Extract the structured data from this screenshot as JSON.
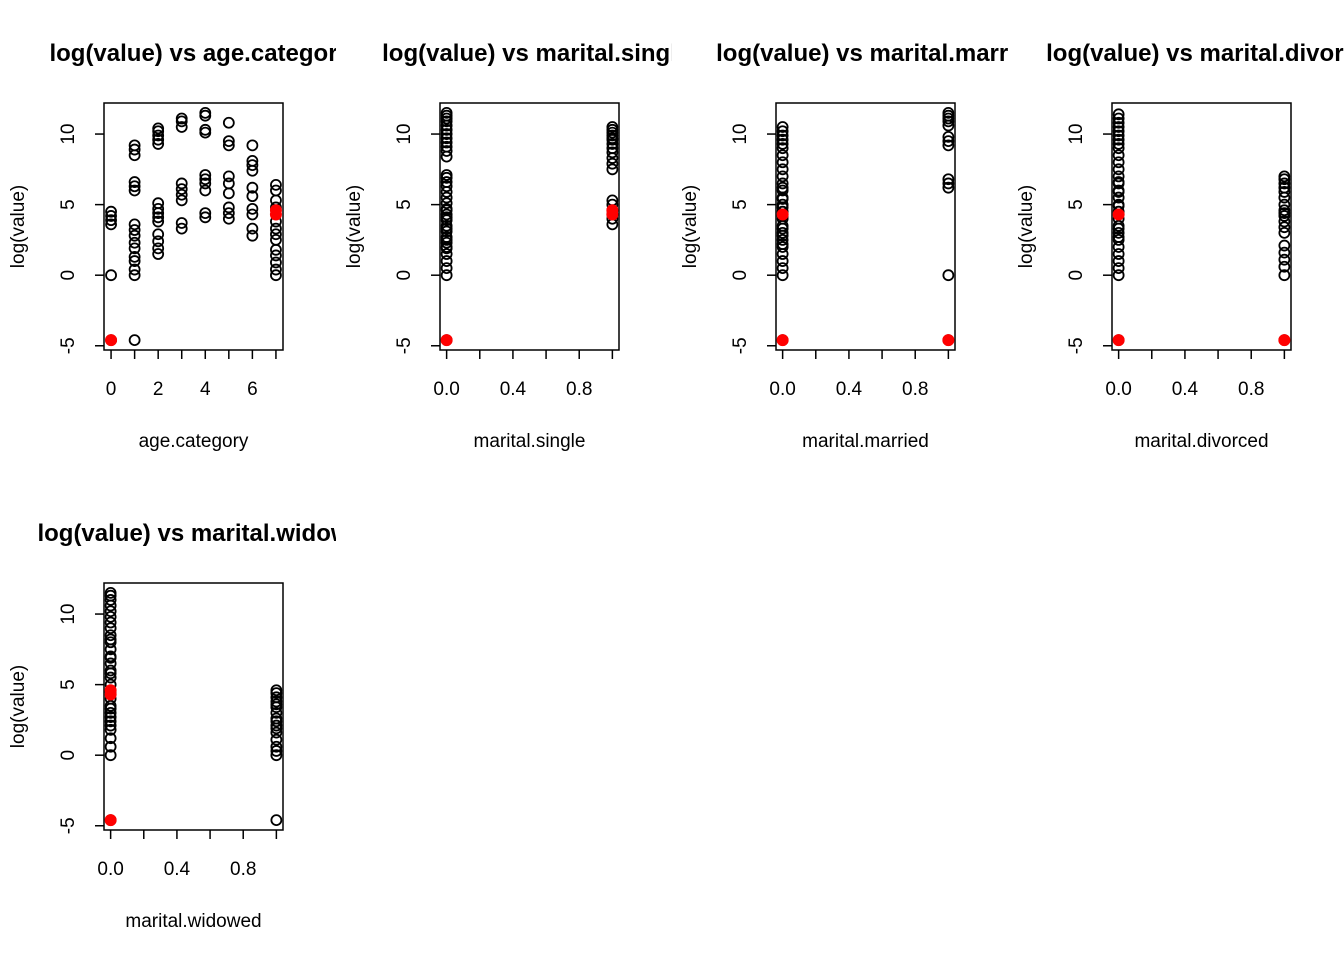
{
  "colors": {
    "open_point": "#000000",
    "highlight_point": "#ff0000",
    "axis": "#000000"
  },
  "chart_data": [
    {
      "type": "scatter",
      "title": "log(value) vs age.categor",
      "xlabel": "age.category",
      "ylabel": "log(value)",
      "xlim": [
        -0.3,
        7.3
      ],
      "ylim": [
        -5.3,
        12.2
      ],
      "xticks": [
        "0",
        "2",
        "4",
        "6"
      ],
      "yticks": [
        "-5",
        "0",
        "5",
        "10"
      ],
      "series": [
        {
          "marker": "open-circle",
          "color": "#000000",
          "x": [
            0,
            0,
            0,
            0,
            0,
            0,
            1,
            1,
            1,
            1,
            1,
            1,
            1,
            1,
            1,
            1,
            1,
            1,
            1,
            1,
            1,
            1,
            2,
            2,
            2,
            2,
            2,
            2,
            2,
            2,
            2,
            2,
            2,
            2,
            2,
            2,
            3,
            3,
            3,
            3,
            3,
            3,
            3,
            3,
            3,
            4,
            4,
            4,
            4,
            4,
            4,
            4,
            4,
            4,
            4,
            5,
            5,
            5,
            5,
            5,
            5,
            5,
            5,
            5,
            6,
            6,
            6,
            6,
            6,
            6,
            6,
            6,
            6,
            6,
            7,
            7,
            7,
            7,
            7,
            7,
            7,
            7,
            7,
            7,
            7,
            7,
            7
          ],
          "y": [
            0,
            3.6,
            3.9,
            4.2,
            4.5,
            -4.6,
            -4.6,
            0,
            0.4,
            1,
            1.3,
            1.9,
            2.3,
            2.8,
            3.2,
            3.6,
            6,
            6.3,
            6.6,
            8.5,
            8.9,
            9.2,
            1.5,
            1.9,
            2.4,
            2.9,
            3.8,
            4.1,
            4.4,
            4.7,
            5.1,
            9.3,
            9.6,
            9.9,
            10.2,
            10.4,
            3.3,
            3.7,
            5.3,
            5.7,
            6.1,
            6.5,
            10.5,
            10.9,
            11.1,
            4.1,
            4.4,
            6,
            6.5,
            6.8,
            7.1,
            10.1,
            10.3,
            11.3,
            11.5,
            4,
            4.4,
            4.8,
            5.8,
            6.5,
            7,
            9.2,
            9.5,
            10.8,
            2.8,
            3.3,
            4.3,
            4.7,
            5.6,
            6.2,
            7.4,
            7.8,
            8.1,
            9.2,
            0,
            0.4,
            0.9,
            1.4,
            1.8,
            2.5,
            2.9,
            3.3,
            3.8,
            4.8,
            5.3,
            6,
            6.4
          ]
        },
        {
          "marker": "filled-circle",
          "color": "#ff0000",
          "x": [
            0,
            7,
            7
          ],
          "y": [
            -4.6,
            4.3,
            4.6
          ]
        }
      ]
    },
    {
      "type": "scatter",
      "title": "log(value) vs marital.singl",
      "xlabel": "marital.single",
      "ylabel": "log(value)",
      "xlim": [
        -0.04,
        1.04
      ],
      "ylim": [
        -5.3,
        12.2
      ],
      "xticks": [
        "0.0",
        "0.4",
        "0.8"
      ],
      "yticks": [
        "-5",
        "0",
        "5",
        "10"
      ],
      "series": [
        {
          "marker": "open-circle",
          "color": "#000000",
          "x": [
            0,
            0,
            0,
            0,
            0,
            0,
            0,
            0,
            0,
            0,
            0,
            0,
            0,
            0,
            0,
            0,
            0,
            0,
            0,
            0,
            0,
            0,
            0,
            0,
            0,
            0,
            0,
            0,
            0,
            0,
            0,
            0,
            0,
            0,
            0,
            0,
            0,
            1,
            1,
            1,
            1,
            1,
            1,
            1,
            1,
            1,
            1,
            1,
            1,
            1,
            1,
            1,
            1,
            1,
            1
          ],
          "y": [
            -4.6,
            0,
            0.5,
            1,
            1.5,
            1.9,
            2.3,
            2.7,
            3.1,
            3.5,
            3.9,
            4.3,
            4.7,
            5.1,
            5.5,
            5.9,
            6.3,
            6.6,
            6.9,
            7.1,
            8.4,
            8.8,
            9.1,
            9.4,
            9.7,
            10,
            10.3,
            10.6,
            10.9,
            11.1,
            11.3,
            11.5,
            2,
            2.5,
            3.3,
            4.1,
            4.6,
            3.6,
            4,
            4.3,
            4.6,
            5,
            5.3,
            7.5,
            7.9,
            8.3,
            8.7,
            9,
            9.3,
            9.6,
            9.9,
            10.1,
            10.3,
            10.5,
            9.7
          ]
        },
        {
          "marker": "filled-circle",
          "color": "#ff0000",
          "x": [
            0,
            1,
            1
          ],
          "y": [
            -4.6,
            4.3,
            4.6
          ]
        }
      ]
    },
    {
      "type": "scatter",
      "title": "log(value) vs marital.marri",
      "xlabel": "marital.married",
      "ylabel": "log(value)",
      "xlim": [
        -0.04,
        1.04
      ],
      "ylim": [
        -5.3,
        12.2
      ],
      "xticks": [
        "0.0",
        "0.4",
        "0.8"
      ],
      "yticks": [
        "-5",
        "0",
        "5",
        "10"
      ],
      "series": [
        {
          "marker": "open-circle",
          "color": "#000000",
          "x": [
            0,
            0,
            0,
            0,
            0,
            0,
            0,
            0,
            0,
            0,
            0,
            0,
            0,
            0,
            0,
            0,
            0,
            0,
            0,
            0,
            0,
            0,
            0,
            0,
            0,
            0,
            0,
            0,
            0,
            0,
            0,
            0,
            1,
            1,
            1,
            1,
            1,
            1,
            1,
            1,
            1,
            1,
            1,
            1,
            1
          ],
          "y": [
            -4.6,
            0,
            0.5,
            1,
            1.5,
            2,
            2.5,
            3,
            3.5,
            4,
            4.5,
            5,
            5.5,
            6,
            6.5,
            7,
            7.5,
            8,
            8.5,
            9,
            9.3,
            9.6,
            9.9,
            10.2,
            10.5,
            2.2,
            2.8,
            3.3,
            4.2,
            4.8,
            5.4,
            6.2,
            -4.6,
            0,
            6.2,
            6.5,
            6.8,
            9.2,
            9.5,
            9.8,
            10.6,
            10.9,
            11.1,
            11.3,
            11.5
          ]
        },
        {
          "marker": "filled-circle",
          "color": "#ff0000",
          "x": [
            0,
            0,
            1
          ],
          "y": [
            4.3,
            -4.6,
            -4.6
          ]
        }
      ]
    },
    {
      "type": "scatter",
      "title": "log(value) vs marital.divorc",
      "xlabel": "marital.divorced",
      "ylabel": "log(value)",
      "xlim": [
        -0.04,
        1.04
      ],
      "ylim": [
        -5.3,
        12.2
      ],
      "xticks": [
        "0.0",
        "0.4",
        "0.8"
      ],
      "yticks": [
        "-5",
        "0",
        "5",
        "10"
      ],
      "series": [
        {
          "marker": "open-circle",
          "color": "#000000",
          "x": [
            0,
            0,
            0,
            0,
            0,
            0,
            0,
            0,
            0,
            0,
            0,
            0,
            0,
            0,
            0,
            0,
            0,
            0,
            0,
            0,
            0,
            0,
            0,
            0,
            0,
            0,
            0,
            0,
            0,
            0,
            0,
            0,
            0,
            1,
            1,
            1,
            1,
            1,
            1,
            1,
            1,
            1,
            1,
            1,
            1,
            1,
            1,
            1,
            1,
            1,
            1,
            1
          ],
          "y": [
            -4.6,
            0,
            0.5,
            1,
            1.5,
            2,
            2.5,
            3,
            3.5,
            4,
            4.5,
            5,
            5.5,
            6,
            6.5,
            7,
            7.5,
            8,
            8.5,
            9,
            9.3,
            9.6,
            9.9,
            10.2,
            10.5,
            10.8,
            11.1,
            11.4,
            2.7,
            3.3,
            4.9,
            5.9,
            6.6,
            -4.6,
            0,
            0.6,
            1.1,
            1.6,
            2.1,
            3,
            3.4,
            3.8,
            4.2,
            4.6,
            5,
            5.5,
            5.9,
            6.2,
            6.5,
            6.8,
            7,
            4.4
          ]
        },
        {
          "marker": "filled-circle",
          "color": "#ff0000",
          "x": [
            0,
            0,
            1
          ],
          "y": [
            4.3,
            -4.6,
            -4.6
          ]
        }
      ]
    },
    {
      "type": "scatter",
      "title": "log(value) vs marital.widow",
      "xlabel": "marital.widowed",
      "ylabel": "log(value)",
      "xlim": [
        -0.04,
        1.04
      ],
      "ylim": [
        -5.3,
        12.2
      ],
      "xticks": [
        "0.0",
        "0.4",
        "0.8"
      ],
      "yticks": [
        "-5",
        "0",
        "5",
        "10"
      ],
      "series": [
        {
          "marker": "open-circle",
          "color": "#000000",
          "x": [
            0,
            0,
            0,
            0,
            0,
            0,
            0,
            0,
            0,
            0,
            0,
            0,
            0,
            0,
            0,
            0,
            0,
            0,
            0,
            0,
            0,
            0,
            0,
            0,
            0,
            0,
            0,
            0,
            0,
            0,
            0,
            0,
            1,
            1,
            1,
            1,
            1,
            1,
            1,
            1,
            1,
            1,
            1,
            1,
            1,
            1,
            1,
            1,
            1
          ],
          "y": [
            -4.6,
            0,
            0.6,
            1.2,
            1.8,
            2.4,
            3,
            3.5,
            4,
            4.5,
            5,
            5.5,
            6,
            6.5,
            7,
            7.5,
            8,
            8.5,
            9,
            9.4,
            9.8,
            10.2,
            10.6,
            11,
            11.3,
            11.5,
            2.1,
            2.7,
            3.3,
            5.8,
            6.9,
            8.2,
            -4.6,
            0,
            0.6,
            1.1,
            1.6,
            2.1,
            2.6,
            3,
            3.4,
            3.8,
            4.1,
            4.4,
            4.6,
            0.3,
            1.9,
            3.6,
            2.4
          ]
        },
        {
          "marker": "filled-circle",
          "color": "#ff0000",
          "x": [
            0,
            0,
            0
          ],
          "y": [
            4.3,
            4.6,
            -4.6
          ]
        }
      ]
    }
  ]
}
